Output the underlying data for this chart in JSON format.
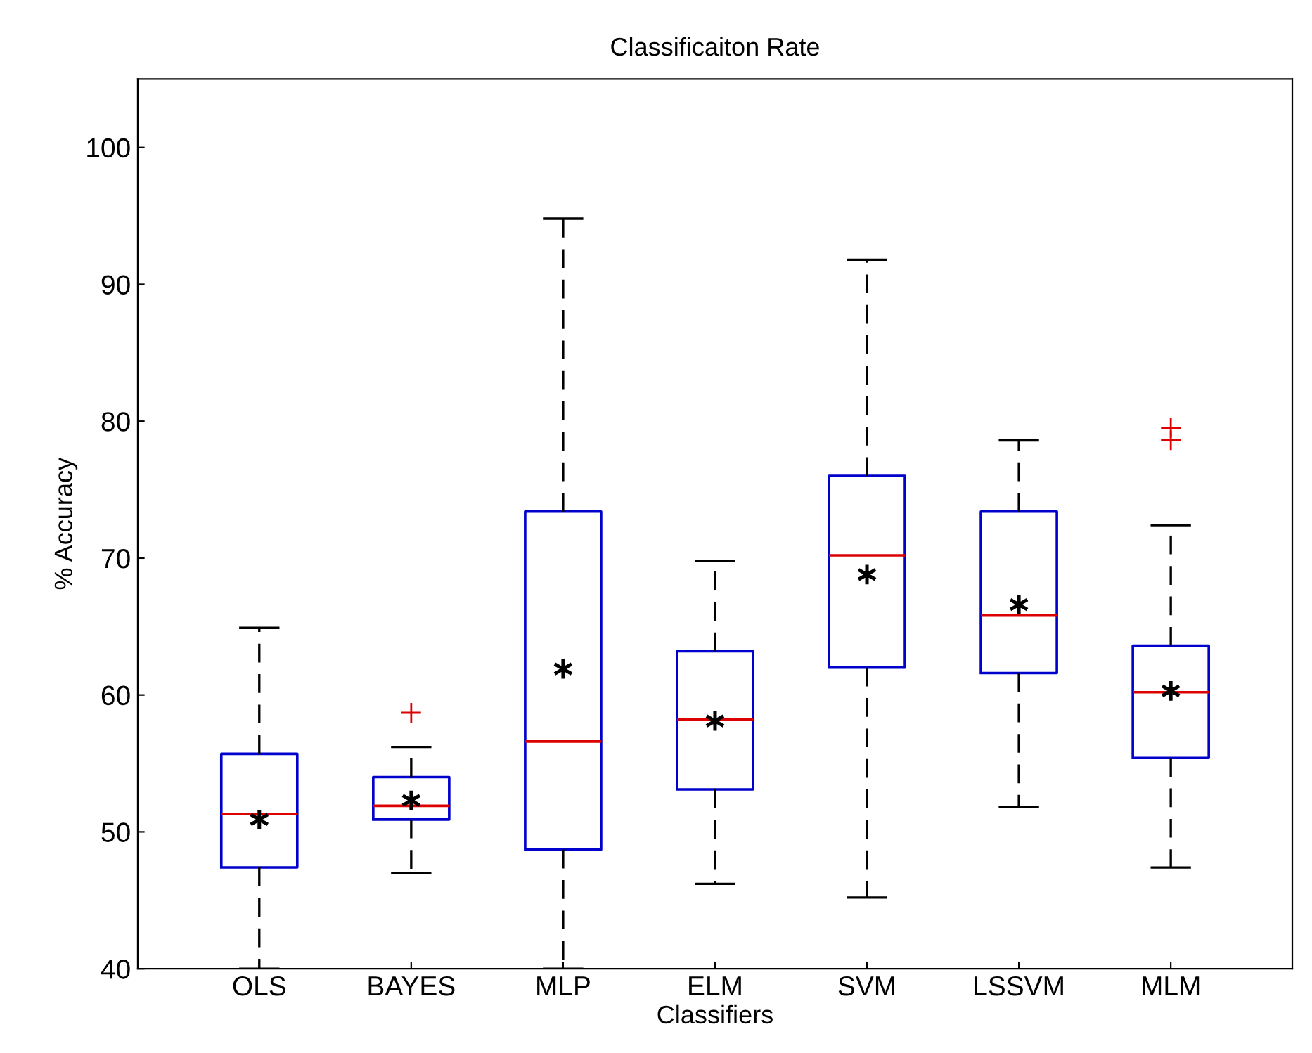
{
  "chart_data": {
    "type": "box",
    "title": "Classificaiton Rate",
    "xlabel": "Classifiers",
    "ylabel": "% Accuracy",
    "categories": [
      "OLS",
      "BAYES",
      "MLP",
      "ELM",
      "SVM",
      "LSSVM",
      "MLM"
    ],
    "boxes": [
      {
        "low": 40,
        "q1": 47.4,
        "median": 51.3,
        "q3": 55.7,
        "high": 64.9,
        "mean": 50.9
      },
      {
        "low": 47.0,
        "q1": 50.9,
        "median": 51.9,
        "q3": 54.0,
        "high": 56.2,
        "mean": 52.3,
        "outliers": [
          58.7
        ]
      },
      {
        "low": 40,
        "q1": 48.7,
        "median": 56.6,
        "q3": 73.4,
        "high": 94.8,
        "mean": 61.9
      },
      {
        "low": 46.2,
        "q1": 53.1,
        "median": 58.2,
        "q3": 63.2,
        "high": 69.8,
        "mean": 58.1
      },
      {
        "low": 45.2,
        "q1": 62.0,
        "median": 70.2,
        "q3": 76.0,
        "high": 91.8,
        "mean": 68.8
      },
      {
        "low": 51.8,
        "q1": 61.6,
        "median": 65.8,
        "q3": 73.4,
        "high": 78.6,
        "mean": 66.6
      },
      {
        "low": 47.4,
        "q1": 55.4,
        "median": 60.2,
        "q3": 63.6,
        "high": 72.4,
        "mean": 60.3,
        "outliers": [
          78.6,
          79.5
        ]
      }
    ],
    "color": "#0000cc",
    "ylim": [
      40,
      105
    ],
    "yticks": [
      40,
      50,
      60,
      70,
      80,
      90,
      100
    ],
    "grid": false,
    "legend": false
  }
}
